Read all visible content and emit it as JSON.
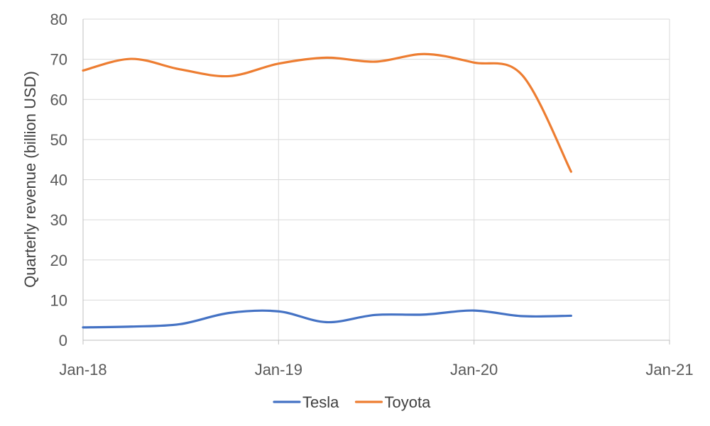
{
  "chart_data": {
    "type": "line",
    "title": "",
    "xlabel": "",
    "ylabel": "Quarterly revenue (billion USD)",
    "xlim": [
      "2018-01-01",
      "2021-01-01"
    ],
    "ylim": [
      0,
      80
    ],
    "x_ticks": [
      "Jan-18",
      "Jan-19",
      "Jan-20",
      "Jan-21"
    ],
    "y_ticks": [
      "0",
      "10",
      "20",
      "30",
      "40",
      "50",
      "60",
      "70",
      "80"
    ],
    "grid": true,
    "legend_position": "bottom",
    "x": [
      "2018-01-01",
      "2018-04-01",
      "2018-07-01",
      "2018-10-01",
      "2019-01-01",
      "2019-04-01",
      "2019-07-01",
      "2019-10-01",
      "2020-01-01",
      "2020-04-01",
      "2020-07-01"
    ],
    "series": [
      {
        "name": "Tesla",
        "color": "#4472C4",
        "values": [
          3.2,
          3.4,
          4.0,
          6.8,
          7.2,
          4.5,
          6.3,
          6.4,
          7.4,
          6.0,
          6.1
        ]
      },
      {
        "name": "Toyota",
        "color": "#ED7D31",
        "values": [
          67.2,
          70.1,
          67.5,
          65.8,
          68.9,
          70.4,
          69.4,
          71.3,
          69.2,
          66.0,
          42.0
        ]
      }
    ]
  }
}
